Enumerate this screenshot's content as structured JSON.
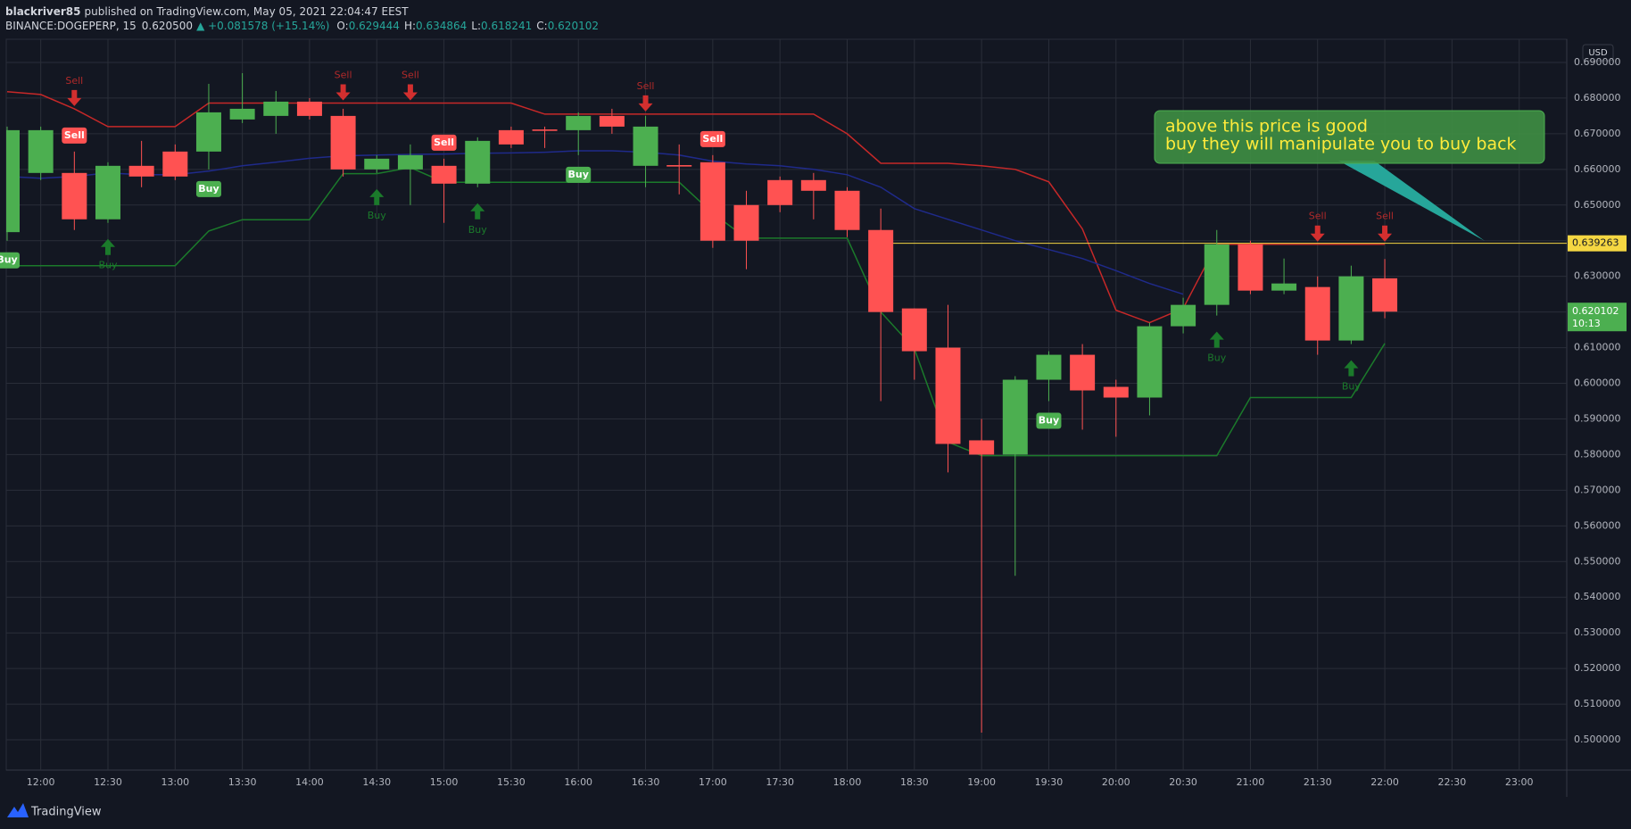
{
  "chart_data": {
    "type": "candlestick",
    "header": {
      "author": "blackriver85",
      "published": "published on TradingView.com, May 05, 2021 22:04:47 EEST",
      "symbol": "BINANCE:DOGEPERP, 15",
      "price": "0.620500",
      "change": "▲ +0.081578 (+15.14%)",
      "ohlc": [
        {
          "label": "O:",
          "value": "0.629444"
        },
        {
          "label": "H:",
          "value": "0.634864"
        },
        {
          "label": "L:",
          "value": "0.618241"
        },
        {
          "label": "C:",
          "value": "0.620102"
        }
      ]
    },
    "categories": [
      null,
      "12:00",
      null,
      "12:30",
      null,
      "13:00",
      null,
      "13:30",
      null,
      "14:00",
      null,
      "14:30",
      null,
      "15:00",
      null,
      "15:30",
      null,
      "16:00",
      null,
      "16:30",
      null,
      "17:00",
      null,
      "17:30",
      null,
      "18:00",
      null,
      "18:30",
      null,
      "19:00",
      null,
      "19:30",
      null,
      "20:00",
      null,
      "20:30",
      null,
      "21:00",
      null,
      "21:30",
      null,
      "22:00",
      null,
      "22:30",
      null,
      "23:00"
    ],
    "open": [
      0.6424,
      0.659,
      0.659,
      0.646,
      0.661,
      0.665,
      0.665,
      0.674,
      0.675,
      0.679,
      0.675,
      0.66,
      0.66,
      0.661,
      0.656,
      0.671,
      0.6712,
      0.671,
      0.675,
      0.661,
      0.6612,
      0.662,
      0.65,
      0.657,
      0.657,
      0.654,
      0.643,
      0.621,
      0.61,
      0.584,
      0.58,
      0.601,
      0.608,
      0.599,
      0.596,
      0.616,
      0.622,
      0.639,
      0.626,
      0.627,
      0.612,
      0.629444,
      null,
      null,
      null,
      null
    ],
    "high": [
      0.672,
      0.672,
      0.665,
      0.662,
      0.668,
      0.667,
      0.684,
      0.687,
      0.682,
      0.68,
      0.677,
      0.664,
      0.667,
      0.663,
      0.669,
      0.672,
      0.672,
      0.676,
      0.677,
      0.675,
      0.667,
      0.664,
      0.654,
      0.658,
      0.659,
      0.655,
      0.649,
      0.621,
      0.622,
      0.59,
      0.602,
      0.609,
      0.611,
      0.601,
      0.617,
      0.624,
      0.643,
      0.64,
      0.635,
      0.63,
      0.633,
      0.634864,
      null,
      null,
      null,
      null
    ],
    "low": [
      0.64,
      0.657,
      0.643,
      0.645,
      0.655,
      0.657,
      0.66,
      0.673,
      0.67,
      0.674,
      0.658,
      0.659,
      0.65,
      0.645,
      0.655,
      0.666,
      0.666,
      0.664,
      0.67,
      0.655,
      0.653,
      0.638,
      0.632,
      0.648,
      0.646,
      0.641,
      0.595,
      0.601,
      0.575,
      0.502,
      0.546,
      0.595,
      0.587,
      0.585,
      0.591,
      0.614,
      0.619,
      0.625,
      0.625,
      0.608,
      0.611,
      0.618241,
      null,
      null,
      null,
      null
    ],
    "close": [
      0.671,
      0.671,
      0.646,
      0.661,
      0.658,
      0.658,
      0.676,
      0.677,
      0.679,
      0.675,
      0.66,
      0.663,
      0.664,
      0.656,
      0.668,
      0.667,
      0.6708,
      0.675,
      0.672,
      0.672,
      0.6608,
      0.64,
      0.64,
      0.65,
      0.654,
      0.643,
      0.62,
      0.609,
      0.583,
      0.58,
      0.601,
      0.608,
      0.598,
      0.596,
      0.616,
      0.622,
      0.639,
      0.626,
      0.628,
      0.612,
      0.63,
      0.620102,
      null,
      null,
      null,
      null
    ],
    "up_color": "#4caf50",
    "down_color": "#ff5252",
    "lines": [
      {
        "color": "#c62828",
        "values": [
          0.6818,
          0.681,
          0.677,
          0.672,
          0.672,
          0.672,
          0.6786,
          0.6786,
          0.6786,
          0.6786,
          0.6786,
          0.6786,
          0.6786,
          0.6786,
          0.6786,
          0.6786,
          0.6755,
          0.6755,
          0.6755,
          0.6755,
          0.6755,
          0.6755,
          0.6755,
          0.6755,
          0.6755,
          0.67,
          0.6617,
          0.6617,
          0.6617,
          0.661,
          0.66,
          0.6565,
          0.6433,
          0.6205,
          0.617,
          0.621,
          0.639,
          0.639,
          0.639,
          0.639,
          0.639,
          0.639,
          null,
          null,
          null,
          null
        ]
      },
      {
        "color": "#1b7a2b",
        "values": [
          0.633,
          0.633,
          0.633,
          0.633,
          0.633,
          0.633,
          0.6427,
          0.6459,
          0.6459,
          0.6459,
          0.6588,
          0.6588,
          0.6605,
          0.6564,
          0.6564,
          0.6564,
          0.6564,
          0.6564,
          0.6564,
          0.6564,
          0.6564,
          0.6477,
          0.6407,
          0.6407,
          0.6407,
          0.6407,
          0.62,
          0.6097,
          0.5835,
          0.5797,
          0.5797,
          0.5797,
          0.5797,
          0.5797,
          0.5797,
          0.5797,
          0.5797,
          0.596,
          0.596,
          0.596,
          0.596,
          0.6112,
          null,
          null,
          null,
          null
        ]
      },
      {
        "color": "#1f2a8a",
        "values": [
          0.658,
          0.6575,
          0.658,
          0.659,
          0.6585,
          0.6585,
          0.6595,
          0.661,
          0.662,
          0.6631,
          0.6638,
          0.664,
          0.6642,
          0.6643,
          0.6645,
          0.6646,
          0.6648,
          0.6652,
          0.6652,
          0.6648,
          0.664,
          0.6623,
          0.6615,
          0.661,
          0.66,
          0.6585,
          0.655,
          0.649,
          0.646,
          0.643,
          0.64,
          0.6375,
          0.635,
          0.6316,
          0.628,
          0.625,
          null,
          null,
          null,
          null,
          null,
          null,
          null,
          null,
          null,
          null
        ]
      }
    ],
    "sell_boxes": [
      null,
      null,
      "Sell",
      null,
      null,
      null,
      null,
      null,
      null,
      null,
      null,
      null,
      null,
      "Sell",
      null,
      null,
      null,
      null,
      null,
      null,
      null,
      "Sell",
      null,
      null,
      null,
      null,
      null,
      null,
      null,
      null,
      null,
      null,
      null,
      null,
      null,
      null,
      null,
      null,
      null,
      null,
      null,
      null,
      null,
      null,
      null,
      null
    ],
    "sell_arrows": [
      null,
      null,
      "Sell",
      null,
      null,
      null,
      null,
      null,
      null,
      null,
      "Sell",
      null,
      "Sell",
      null,
      null,
      null,
      null,
      null,
      null,
      "Sell",
      null,
      null,
      null,
      null,
      null,
      null,
      null,
      null,
      null,
      null,
      null,
      null,
      null,
      null,
      null,
      null,
      null,
      null,
      null,
      "Sell",
      null,
      "Sell",
      null,
      null,
      null,
      null
    ],
    "buy_boxes": [
      "Buy",
      null,
      null,
      null,
      null,
      null,
      "Buy",
      null,
      null,
      null,
      null,
      null,
      null,
      null,
      null,
      null,
      null,
      "Buy",
      null,
      null,
      null,
      null,
      null,
      null,
      null,
      null,
      null,
      null,
      null,
      null,
      null,
      "Buy",
      null,
      null,
      null,
      null,
      null,
      null,
      null,
      null,
      null,
      null,
      null,
      null,
      null,
      null
    ],
    "buy_arrows": [
      null,
      null,
      null,
      "Buy",
      null,
      null,
      null,
      null,
      null,
      null,
      null,
      "Buy",
      null,
      null,
      "Buy",
      null,
      null,
      null,
      null,
      null,
      null,
      null,
      null,
      null,
      null,
      null,
      null,
      null,
      null,
      null,
      null,
      null,
      null,
      null,
      null,
      null,
      "Buy",
      null,
      null,
      null,
      "Buy",
      null,
      null,
      null,
      null,
      null
    ],
    "ylim": [
      0.4915,
      0.6965
    ],
    "yticks": [
      {
        "value": 0.5,
        "label": "0.500000"
      },
      {
        "value": 0.51,
        "label": "0.510000"
      },
      {
        "value": 0.52,
        "label": "0.520000"
      },
      {
        "value": 0.53,
        "label": "0.530000"
      },
      {
        "value": 0.54,
        "label": "0.540000"
      },
      {
        "value": 0.55,
        "label": "0.550000"
      },
      {
        "value": 0.56,
        "label": "0.560000"
      },
      {
        "value": 0.57,
        "label": "0.570000"
      },
      {
        "value": 0.58,
        "label": "0.580000"
      },
      {
        "value": 0.59,
        "label": "0.590000"
      },
      {
        "value": 0.6,
        "label": "0.600000"
      },
      {
        "value": 0.61,
        "label": "0.610000"
      },
      {
        "value": 0.62,
        "label": "0.620000"
      },
      {
        "value": 0.63,
        "label": "0.630000"
      },
      {
        "value": 0.64,
        "label": "0.640000"
      },
      {
        "value": 0.65,
        "label": "0.650000"
      },
      {
        "value": 0.66,
        "label": "0.660000"
      },
      {
        "value": 0.67,
        "label": "0.670000"
      },
      {
        "value": 0.68,
        "label": "0.680000"
      },
      {
        "value": 0.69,
        "label": "0.690000"
      }
    ],
    "grid": true,
    "currency": "USD",
    "hline": {
      "value": 0.639263,
      "color": "#f5d742"
    },
    "last_price": {
      "value": 0.620102,
      "countdown": "10:13"
    },
    "annotation": [
      "above this price is good",
      "buy they will manipulate you to buy back"
    ],
    "footer": "TradingView"
  }
}
